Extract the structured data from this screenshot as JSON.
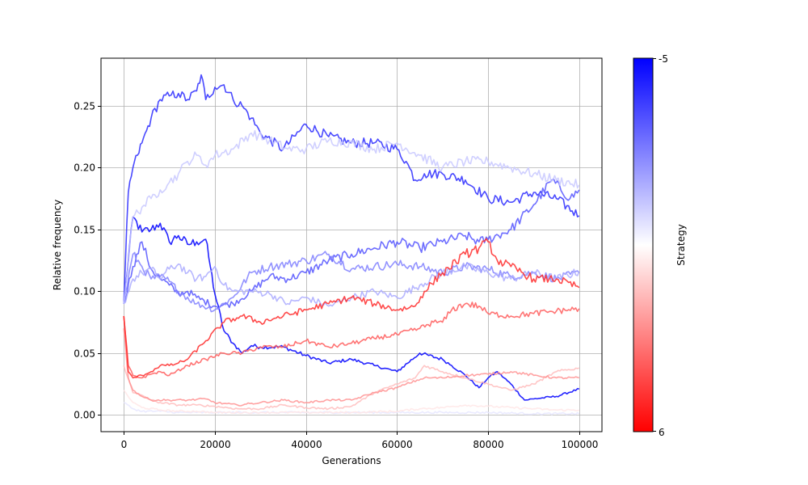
{
  "chart_data": {
    "type": "line",
    "title": "",
    "xlabel": "Generations",
    "ylabel": "Relative frequency",
    "xlim": [
      -5000,
      105000
    ],
    "ylim": [
      -0.0135,
      0.2885
    ],
    "xticks": [
      0,
      20000,
      40000,
      60000,
      80000,
      100000
    ],
    "xtick_labels": [
      "0",
      "20000",
      "40000",
      "60000",
      "80000",
      "100000"
    ],
    "yticks": [
      0.0,
      0.05,
      0.1,
      0.15,
      0.2,
      0.25
    ],
    "ytick_labels": [
      "0.00",
      "0.05",
      "0.10",
      "0.15",
      "0.20",
      "0.25"
    ],
    "grid": true,
    "colorbar": {
      "label": "Strategy",
      "top_label": "-5",
      "bottom_label": "6",
      "range": [
        -5,
        6
      ],
      "colormap": "bwr_reversed",
      "top_color": "#0000ff",
      "mid_color": "#ffffff",
      "bottom_color": "#ff0000"
    },
    "series": [
      {
        "strategy": -5,
        "color": "#0000ff",
        "x": [
          0,
          2000,
          4000,
          6000,
          8000,
          10000,
          12000,
          14000,
          16000,
          18000,
          19000,
          20000,
          22000,
          24000,
          26000,
          28000,
          30000,
          35000,
          40000,
          45000,
          50000,
          55000,
          60000,
          65000,
          70000,
          72000,
          75000,
          78000,
          80000,
          82000,
          85000,
          88000,
          90000,
          95000,
          100000
        ],
        "y": [
          0.09,
          0.16,
          0.148,
          0.15,
          0.155,
          0.14,
          0.145,
          0.138,
          0.14,
          0.142,
          0.12,
          0.098,
          0.068,
          0.058,
          0.05,
          0.056,
          0.055,
          0.055,
          0.048,
          0.042,
          0.045,
          0.04,
          0.035,
          0.05,
          0.045,
          0.04,
          0.032,
          0.022,
          0.03,
          0.035,
          0.025,
          0.012,
          0.013,
          0.015,
          0.021
        ]
      },
      {
        "strategy": -4,
        "color": "#2a2aff",
        "x": [
          0,
          1000,
          2000,
          3000,
          4000,
          5000,
          6000,
          8000,
          10000,
          12000,
          14000,
          16000,
          17000,
          18000,
          20000,
          22000,
          24000,
          26000,
          28000,
          30000,
          35000,
          40000,
          45000,
          50000,
          55000,
          60000,
          62000,
          64000,
          66000,
          70000,
          75000,
          80000,
          85000,
          90000,
          95000,
          100000
        ],
        "y": [
          0.09,
          0.18,
          0.2,
          0.21,
          0.22,
          0.23,
          0.24,
          0.255,
          0.258,
          0.26,
          0.255,
          0.262,
          0.275,
          0.255,
          0.265,
          0.267,
          0.255,
          0.25,
          0.24,
          0.228,
          0.215,
          0.235,
          0.225,
          0.22,
          0.22,
          0.215,
          0.205,
          0.19,
          0.195,
          0.195,
          0.19,
          0.175,
          0.172,
          0.18,
          0.175,
          0.161
        ]
      },
      {
        "strategy": -3,
        "color": "#5555ff",
        "x": [
          0,
          2000,
          4000,
          6000,
          8000,
          10000,
          12000,
          14000,
          16000,
          20000,
          24000,
          28000,
          32000,
          36000,
          40000,
          45000,
          50000,
          55000,
          60000,
          65000,
          70000,
          75000,
          78000,
          80000,
          85000,
          90000,
          94000,
          98000,
          100000
        ],
        "y": [
          0.09,
          0.12,
          0.14,
          0.118,
          0.11,
          0.105,
          0.098,
          0.1,
          0.095,
          0.088,
          0.09,
          0.1,
          0.112,
          0.11,
          0.115,
          0.125,
          0.13,
          0.135,
          0.14,
          0.135,
          0.14,
          0.145,
          0.14,
          0.142,
          0.15,
          0.17,
          0.19,
          0.175,
          0.182
        ]
      },
      {
        "strategy": -2,
        "color": "#8080ff",
        "x": [
          0,
          2000,
          4000,
          6000,
          8000,
          10000,
          12000,
          16000,
          20000,
          24000,
          28000,
          32000,
          36000,
          40000,
          45000,
          50000,
          55000,
          60000,
          65000,
          70000,
          75000,
          80000,
          85000,
          90000,
          95000,
          100000
        ],
        "y": [
          0.09,
          0.13,
          0.12,
          0.11,
          0.112,
          0.108,
          0.1,
          0.09,
          0.085,
          0.095,
          0.115,
          0.12,
          0.122,
          0.125,
          0.13,
          0.118,
          0.12,
          0.122,
          0.12,
          0.115,
          0.12,
          0.118,
          0.112,
          0.115,
          0.11,
          0.115
        ]
      },
      {
        "strategy": -1,
        "color": "#aaaaff",
        "x": [
          0,
          2000,
          4000,
          6000,
          8000,
          10000,
          12000,
          14000,
          16000,
          18000,
          20000,
          22000,
          24000,
          28000,
          32000,
          36000,
          40000,
          45000,
          50000,
          55000,
          60000,
          65000,
          70000,
          75000,
          80000,
          85000,
          90000,
          95000,
          100000
        ],
        "y": [
          0.09,
          0.11,
          0.115,
          0.118,
          0.11,
          0.118,
          0.122,
          0.115,
          0.11,
          0.112,
          0.12,
          0.105,
          0.1,
          0.1,
          0.098,
          0.09,
          0.095,
          0.088,
          0.095,
          0.1,
          0.095,
          0.105,
          0.115,
          0.12,
          0.115,
          0.11,
          0.115,
          0.11,
          0.116
        ]
      },
      {
        "strategy": 0,
        "color": "#c8c8ff",
        "x": [
          0,
          2000,
          4000,
          6000,
          8000,
          10000,
          12000,
          14000,
          16000,
          18000,
          20000,
          24000,
          28000,
          32000,
          36000,
          40000,
          45000,
          50000,
          55000,
          60000,
          65000,
          70000,
          75000,
          80000,
          85000,
          90000,
          95000,
          100000
        ],
        "y": [
          0.09,
          0.16,
          0.168,
          0.175,
          0.182,
          0.188,
          0.195,
          0.205,
          0.21,
          0.202,
          0.21,
          0.215,
          0.228,
          0.222,
          0.215,
          0.215,
          0.222,
          0.22,
          0.215,
          0.22,
          0.21,
          0.2,
          0.205,
          0.205,
          0.2,
          0.195,
          0.19,
          0.186
        ]
      },
      {
        "strategy": 1,
        "color": "#e6e6ff",
        "x": [
          0,
          2000,
          4000,
          8000,
          12000,
          16000,
          20000,
          30000,
          40000,
          50000,
          60000,
          70000,
          80000,
          90000,
          100000
        ],
        "y": [
          0.01,
          0.005,
          0.003,
          0.003,
          0.002,
          0.002,
          0.002,
          0.002,
          0.002,
          0.002,
          0.002,
          0.002,
          0.002,
          0.001,
          0.001
        ]
      },
      {
        "strategy": 2,
        "color": "#ffe6e6",
        "x": [
          0,
          2000,
          4000,
          8000,
          12000,
          16000,
          20000,
          30000,
          40000,
          50000,
          60000,
          65000,
          70000,
          75000,
          80000,
          85000,
          90000,
          95000,
          100000
        ],
        "y": [
          0.02,
          0.01,
          0.006,
          0.004,
          0.003,
          0.003,
          0.002,
          0.002,
          0.002,
          0.002,
          0.003,
          0.005,
          0.006,
          0.008,
          0.007,
          0.006,
          0.005,
          0.004,
          0.004
        ]
      },
      {
        "strategy": 3,
        "color": "#ffbcbc",
        "x": [
          0,
          2000,
          4000,
          6000,
          8000,
          12000,
          16000,
          20000,
          25000,
          30000,
          35000,
          40000,
          45000,
          50000,
          55000,
          60000,
          64000,
          66000,
          70000,
          75000,
          80000,
          85000,
          90000,
          95000,
          100000
        ],
        "y": [
          0.04,
          0.018,
          0.016,
          0.012,
          0.01,
          0.008,
          0.008,
          0.007,
          0.005,
          0.005,
          0.008,
          0.006,
          0.005,
          0.007,
          0.018,
          0.025,
          0.03,
          0.04,
          0.035,
          0.03,
          0.025,
          0.02,
          0.025,
          0.035,
          0.038
        ]
      },
      {
        "strategy": 4,
        "color": "#ff9292",
        "x": [
          0,
          1000,
          2000,
          4000,
          6000,
          10000,
          14000,
          18000,
          20000,
          25000,
          30000,
          35000,
          40000,
          45000,
          50000,
          55000,
          60000,
          62000,
          66000,
          70000,
          75000,
          80000,
          85000,
          90000,
          95000,
          100000
        ],
        "y": [
          0.07,
          0.03,
          0.02,
          0.015,
          0.012,
          0.012,
          0.012,
          0.013,
          0.01,
          0.008,
          0.01,
          0.012,
          0.01,
          0.012,
          0.012,
          0.018,
          0.022,
          0.025,
          0.03,
          0.03,
          0.032,
          0.033,
          0.035,
          0.032,
          0.03,
          0.03
        ]
      },
      {
        "strategy": 5,
        "color": "#ff5c5c",
        "x": [
          0,
          1000,
          2000,
          4000,
          6000,
          8000,
          10000,
          14000,
          18000,
          22000,
          26000,
          30000,
          35000,
          40000,
          45000,
          50000,
          55000,
          60000,
          65000,
          68000,
          70000,
          72000,
          75000,
          78000,
          80000,
          85000,
          90000,
          95000,
          100000
        ],
        "y": [
          0.08,
          0.04,
          0.032,
          0.03,
          0.033,
          0.035,
          0.032,
          0.04,
          0.045,
          0.05,
          0.05,
          0.055,
          0.055,
          0.06,
          0.055,
          0.058,
          0.062,
          0.065,
          0.07,
          0.075,
          0.075,
          0.085,
          0.09,
          0.088,
          0.082,
          0.08,
          0.082,
          0.084,
          0.086
        ]
      },
      {
        "strategy": 6,
        "color": "#ff2b2b",
        "x": [
          0,
          1000,
          2000,
          4000,
          6000,
          8000,
          10000,
          12000,
          14000,
          18000,
          22000,
          26000,
          30000,
          35000,
          40000,
          45000,
          50000,
          55000,
          60000,
          64000,
          66000,
          70000,
          75000,
          78000,
          80000,
          82000,
          85000,
          90000,
          95000,
          100000
        ],
        "y": [
          0.08,
          0.035,
          0.03,
          0.032,
          0.035,
          0.04,
          0.04,
          0.042,
          0.045,
          0.06,
          0.075,
          0.08,
          0.075,
          0.08,
          0.085,
          0.09,
          0.095,
          0.09,
          0.085,
          0.088,
          0.1,
          0.115,
          0.13,
          0.135,
          0.14,
          0.125,
          0.12,
          0.11,
          0.11,
          0.103
        ]
      }
    ]
  }
}
